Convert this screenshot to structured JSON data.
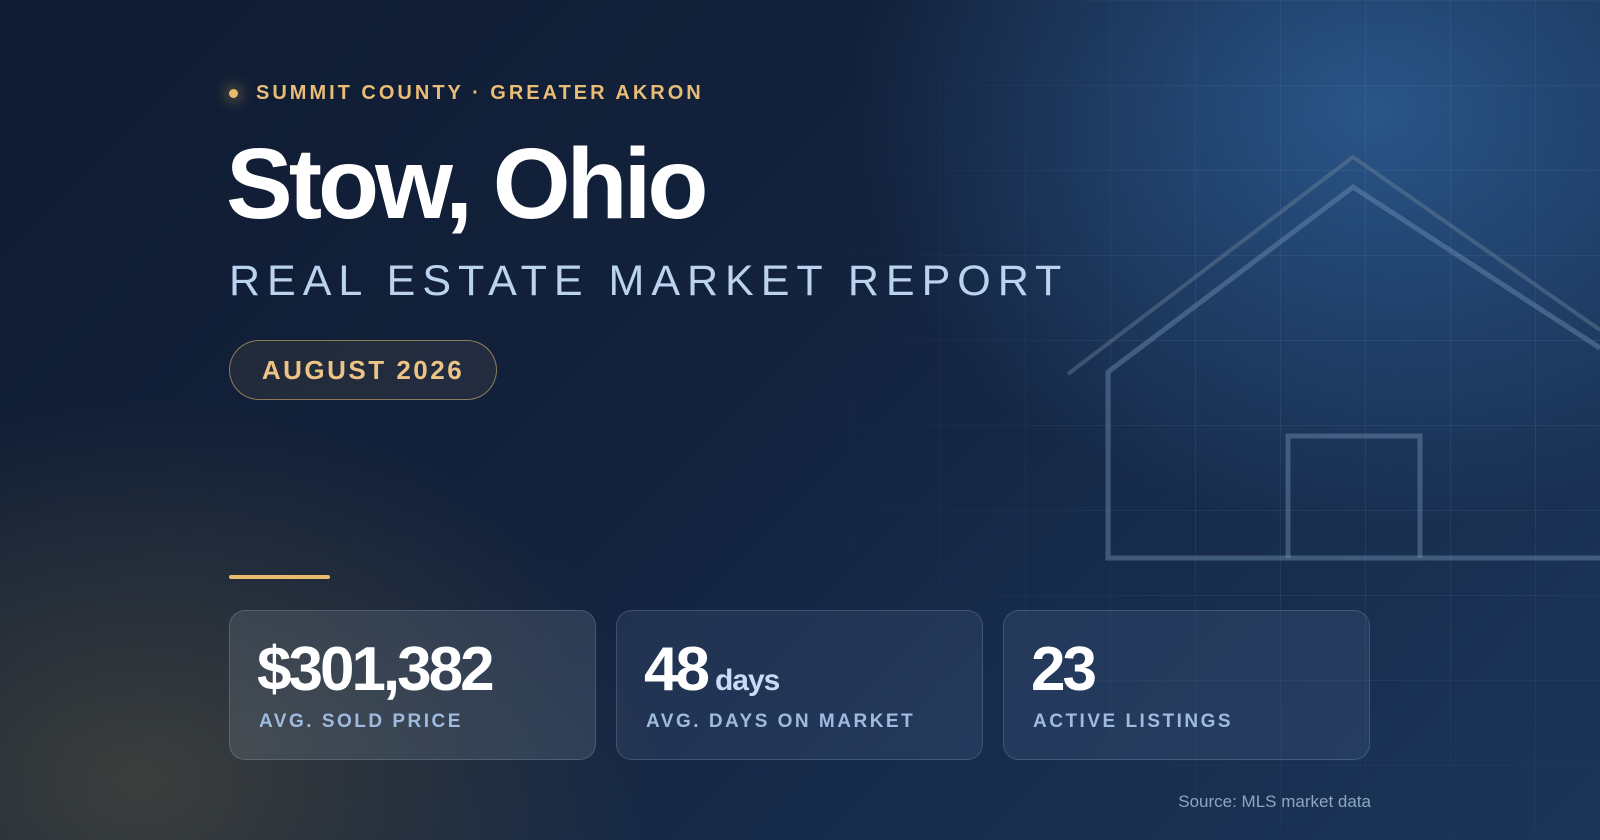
{
  "header": {
    "kicker": "SUMMIT COUNTY · GREATER AKRON",
    "title": "Stow, Ohio",
    "subtitle": "REAL ESTATE MARKET REPORT",
    "date": "AUGUST 2026"
  },
  "stats": [
    {
      "value": "$301,382",
      "unit": "",
      "label": "AVG. SOLD PRICE"
    },
    {
      "value": "48",
      "unit": "days",
      "label": "AVG. DAYS ON MARKET"
    },
    {
      "value": "23",
      "unit": "",
      "label": "ACTIVE LISTINGS"
    }
  ],
  "footer": {
    "source": "Source: MLS market data"
  },
  "decor": {
    "icon": "house-outline-icon",
    "accent_color": "#e9bb6f",
    "subtitle_color": "#bcd3f0",
    "background_color": "#13223d"
  }
}
